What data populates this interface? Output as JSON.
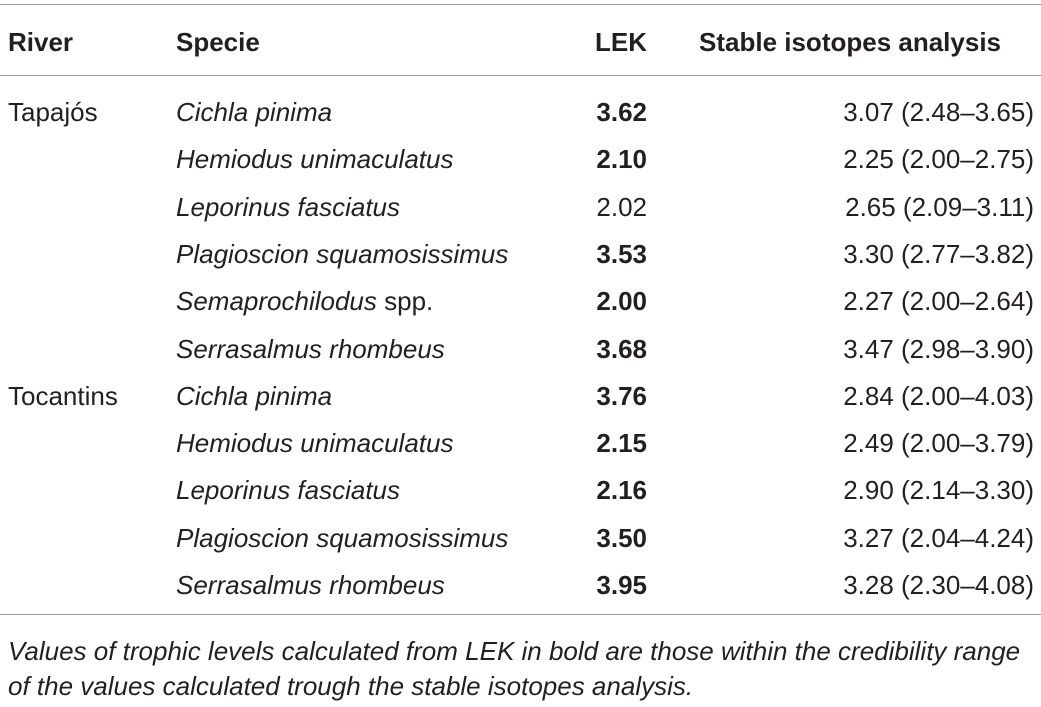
{
  "headers": {
    "river": "River",
    "specie": "Specie",
    "lek": "LEK",
    "sia": "Stable isotopes analysis"
  },
  "rows": [
    {
      "river": "Tapajós",
      "specie": "Cichla pinima",
      "specie_suffix": "",
      "lek": "3.62",
      "lek_bold": true,
      "sia": "3.07 (2.48–3.65)"
    },
    {
      "river": "",
      "specie": "Hemiodus unimaculatus",
      "specie_suffix": "",
      "lek": "2.10",
      "lek_bold": true,
      "sia": "2.25 (2.00–2.75)"
    },
    {
      "river": "",
      "specie": "Leporinus fasciatus",
      "specie_suffix": "",
      "lek": "2.02",
      "lek_bold": false,
      "sia": "2.65 (2.09–3.11)"
    },
    {
      "river": "",
      "specie": "Plagioscion squamosissimus",
      "specie_suffix": "",
      "lek": "3.53",
      "lek_bold": true,
      "sia": "3.30 (2.77–3.82)"
    },
    {
      "river": "",
      "specie": "Semaprochilodus",
      "specie_suffix": " spp.",
      "lek": "2.00",
      "lek_bold": true,
      "sia": "2.27 (2.00–2.64)"
    },
    {
      "river": "",
      "specie": "Serrasalmus rhombeus",
      "specie_suffix": "",
      "lek": "3.68",
      "lek_bold": true,
      "sia": "3.47 (2.98–3.90)"
    },
    {
      "river": "Tocantins",
      "specie": "Cichla pinima",
      "specie_suffix": "",
      "lek": "3.76",
      "lek_bold": true,
      "sia": "2.84 (2.00–4.03)"
    },
    {
      "river": "",
      "specie": "Hemiodus unimaculatus",
      "specie_suffix": "",
      "lek": "2.15",
      "lek_bold": true,
      "sia": "2.49 (2.00–3.79)"
    },
    {
      "river": "",
      "specie": "Leporinus fasciatus",
      "specie_suffix": "",
      "lek": "2.16",
      "lek_bold": true,
      "sia": "2.90 (2.14–3.30)"
    },
    {
      "river": "",
      "specie": "Plagioscion squamosissimus",
      "specie_suffix": "",
      "lek": "3.50",
      "lek_bold": true,
      "sia": "3.27 (2.04–4.24)"
    },
    {
      "river": "",
      "specie": "Serrasalmus rhombeus",
      "specie_suffix": "",
      "lek": "3.95",
      "lek_bold": true,
      "sia": "3.28 (2.30–4.08)"
    }
  ],
  "footnote": "Values of trophic levels calculated from LEK in bold are those within the credibility range of the values calculated trough the stable isotopes analysis."
}
